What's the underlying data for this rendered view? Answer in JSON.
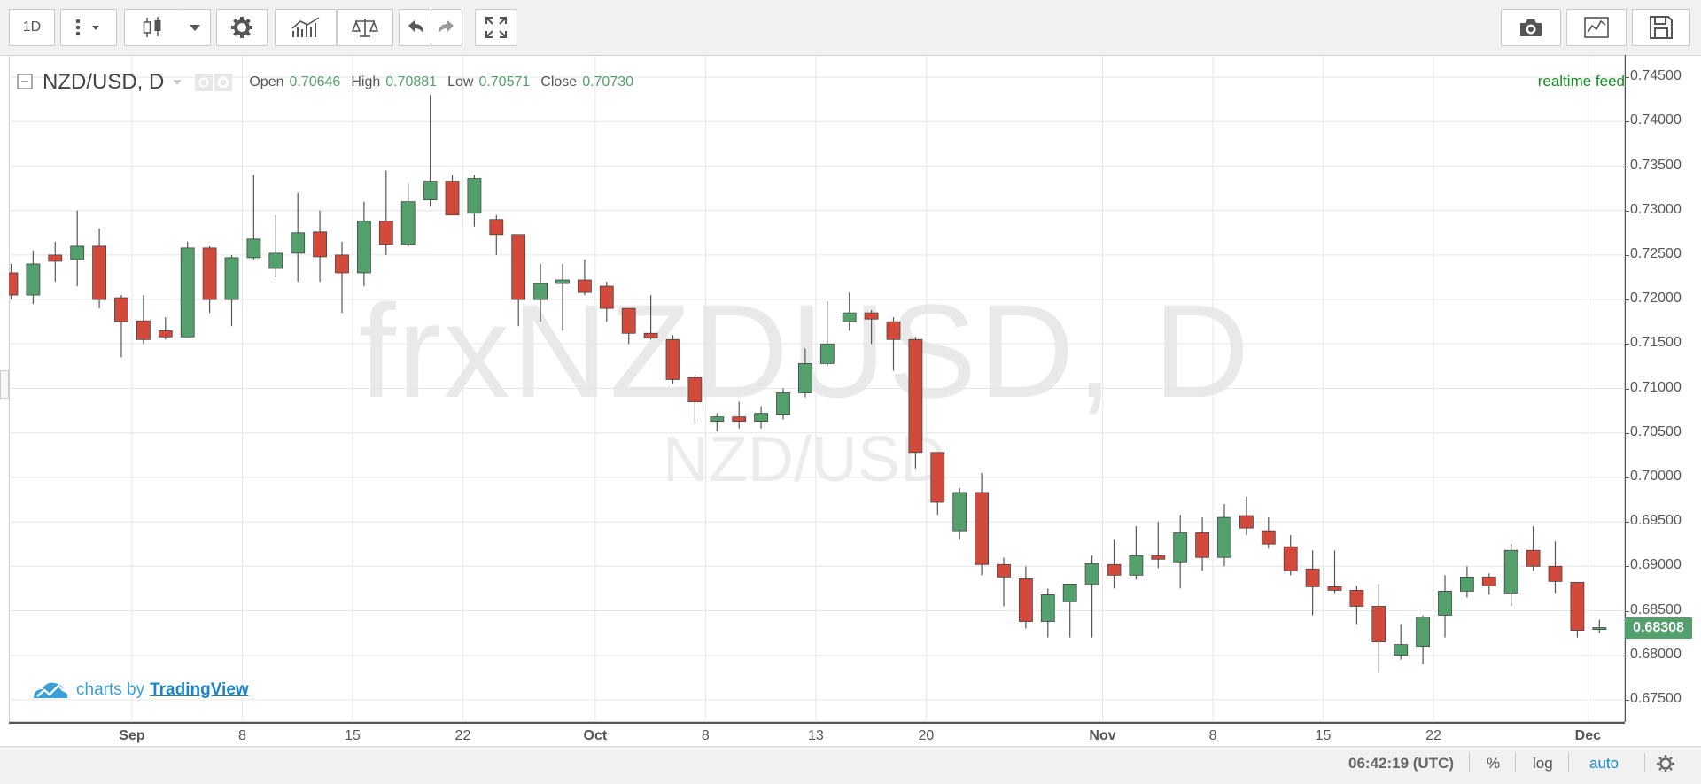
{
  "toolbar": {
    "interval": "1D",
    "icons": [
      "more-vert-icon",
      "chevron-down-icon",
      "candles-icon",
      "chevron-down-icon",
      "gear-icon",
      "indicators-icon",
      "compare-icon",
      "undo-icon",
      "redo-icon",
      "fullscreen-icon",
      "camera-icon",
      "chart-line-icon",
      "save-icon"
    ]
  },
  "header": {
    "symbol": "NZD/USD, D",
    "open_label": "Open",
    "open_value": "0.70646",
    "high_label": "High",
    "high_value": "0.70881",
    "low_label": "Low",
    "low_value": "0.70571",
    "close_label": "Close",
    "close_value": "0.70730",
    "realtime": "realtime feed"
  },
  "watermark": {
    "main": "frxNZDUSD, D",
    "sub": "NZD/USD"
  },
  "brand": {
    "prefix": "charts by",
    "name": "TradingView"
  },
  "status_bar": {
    "time": "06:42:19 (UTC)",
    "percent": "%",
    "log": "log",
    "auto": "auto"
  },
  "colors": {
    "up": "#53a06d",
    "down": "#d24a3b",
    "accent": "#1a86c6",
    "realtime": "#138d22"
  },
  "chart_data": {
    "type": "candlestick",
    "ylim": [
      0.6725,
      0.7475
    ],
    "y_ticks": [
      "0.74500",
      "0.74000",
      "0.73500",
      "0.73000",
      "0.72500",
      "0.72000",
      "0.71500",
      "0.71000",
      "0.70500",
      "0.70000",
      "0.69500",
      "0.69000",
      "0.68500",
      "0.68000",
      "0.67500"
    ],
    "last_price": "0.68308",
    "x_labels": [
      "Sep",
      "8",
      "15",
      "22",
      "Oct",
      "8",
      "13",
      "20",
      "Nov",
      "8",
      "15",
      "22",
      "Dec"
    ],
    "x_label_index": [
      5.5,
      10.5,
      15.5,
      20.5,
      26.5,
      31.5,
      36.5,
      41.5,
      49.5,
      54.5,
      59.5,
      64.5,
      71.5
    ],
    "candles": [
      {
        "o": 0.723,
        "h": 0.724,
        "l": 0.72,
        "c": 0.7205
      },
      {
        "o": 0.7205,
        "h": 0.7255,
        "l": 0.7195,
        "c": 0.724
      },
      {
        "o": 0.725,
        "h": 0.7265,
        "l": 0.722,
        "c": 0.7243
      },
      {
        "o": 0.7245,
        "h": 0.73,
        "l": 0.7215,
        "c": 0.726
      },
      {
        "o": 0.726,
        "h": 0.728,
        "l": 0.719,
        "c": 0.72
      },
      {
        "o": 0.7202,
        "h": 0.7205,
        "l": 0.7135,
        "c": 0.7175
      },
      {
        "o": 0.7176,
        "h": 0.7205,
        "l": 0.715,
        "c": 0.7155
      },
      {
        "o": 0.7165,
        "h": 0.718,
        "l": 0.7155,
        "c": 0.7158
      },
      {
        "o": 0.7158,
        "h": 0.7265,
        "l": 0.7158,
        "c": 0.7258
      },
      {
        "o": 0.7258,
        "h": 0.726,
        "l": 0.7185,
        "c": 0.72
      },
      {
        "o": 0.72,
        "h": 0.725,
        "l": 0.717,
        "c": 0.7247
      },
      {
        "o": 0.7247,
        "h": 0.734,
        "l": 0.7245,
        "c": 0.7268
      },
      {
        "o": 0.7235,
        "h": 0.7295,
        "l": 0.7225,
        "c": 0.7252
      },
      {
        "o": 0.7252,
        "h": 0.732,
        "l": 0.722,
        "c": 0.7275
      },
      {
        "o": 0.7276,
        "h": 0.73,
        "l": 0.722,
        "c": 0.7248
      },
      {
        "o": 0.725,
        "h": 0.7265,
        "l": 0.7185,
        "c": 0.723
      },
      {
        "o": 0.723,
        "h": 0.731,
        "l": 0.7215,
        "c": 0.7288
      },
      {
        "o": 0.7288,
        "h": 0.7345,
        "l": 0.725,
        "c": 0.7262
      },
      {
        "o": 0.7262,
        "h": 0.733,
        "l": 0.726,
        "c": 0.731
      },
      {
        "o": 0.7312,
        "h": 0.743,
        "l": 0.7305,
        "c": 0.7333
      },
      {
        "o": 0.7333,
        "h": 0.734,
        "l": 0.7295,
        "c": 0.7295
      },
      {
        "o": 0.7297,
        "h": 0.734,
        "l": 0.7282,
        "c": 0.7336
      },
      {
        "o": 0.729,
        "h": 0.7295,
        "l": 0.725,
        "c": 0.7273
      },
      {
        "o": 0.7273,
        "h": 0.7273,
        "l": 0.717,
        "c": 0.72
      },
      {
        "o": 0.72,
        "h": 0.724,
        "l": 0.7175,
        "c": 0.7218
      },
      {
        "o": 0.7218,
        "h": 0.724,
        "l": 0.7165,
        "c": 0.7222
      },
      {
        "o": 0.7222,
        "h": 0.7245,
        "l": 0.7205,
        "c": 0.7208
      },
      {
        "o": 0.7215,
        "h": 0.722,
        "l": 0.7175,
        "c": 0.719
      },
      {
        "o": 0.719,
        "h": 0.719,
        "l": 0.715,
        "c": 0.7162
      },
      {
        "o": 0.7162,
        "h": 0.7205,
        "l": 0.7155,
        "c": 0.7157
      },
      {
        "o": 0.7155,
        "h": 0.716,
        "l": 0.7105,
        "c": 0.711
      },
      {
        "o": 0.7112,
        "h": 0.7115,
        "l": 0.706,
        "c": 0.7085
      },
      {
        "o": 0.7063,
        "h": 0.7072,
        "l": 0.7052,
        "c": 0.7068
      },
      {
        "o": 0.7068,
        "h": 0.7085,
        "l": 0.7055,
        "c": 0.7063
      },
      {
        "o": 0.7063,
        "h": 0.708,
        "l": 0.7055,
        "c": 0.7072
      },
      {
        "o": 0.7071,
        "h": 0.71,
        "l": 0.7065,
        "c": 0.7095
      },
      {
        "o": 0.7095,
        "h": 0.7145,
        "l": 0.709,
        "c": 0.7128
      },
      {
        "o": 0.7128,
        "h": 0.7198,
        "l": 0.7125,
        "c": 0.715
      },
      {
        "o": 0.7175,
        "h": 0.7208,
        "l": 0.7165,
        "c": 0.7185
      },
      {
        "o": 0.7185,
        "h": 0.7188,
        "l": 0.715,
        "c": 0.7178
      },
      {
        "o": 0.7175,
        "h": 0.718,
        "l": 0.712,
        "c": 0.7155
      },
      {
        "o": 0.7155,
        "h": 0.7158,
        "l": 0.701,
        "c": 0.7028
      },
      {
        "o": 0.7028,
        "h": 0.7028,
        "l": 0.6958,
        "c": 0.6972
      },
      {
        "o": 0.694,
        "h": 0.6988,
        "l": 0.693,
        "c": 0.6983
      },
      {
        "o": 0.6983,
        "h": 0.7005,
        "l": 0.689,
        "c": 0.6902
      },
      {
        "o": 0.6902,
        "h": 0.691,
        "l": 0.6855,
        "c": 0.6888
      },
      {
        "o": 0.6886,
        "h": 0.69,
        "l": 0.683,
        "c": 0.6838
      },
      {
        "o": 0.6838,
        "h": 0.6875,
        "l": 0.682,
        "c": 0.6868
      },
      {
        "o": 0.686,
        "h": 0.688,
        "l": 0.682,
        "c": 0.688
      },
      {
        "o": 0.688,
        "h": 0.6912,
        "l": 0.682,
        "c": 0.6903
      },
      {
        "o": 0.6902,
        "h": 0.693,
        "l": 0.6875,
        "c": 0.689
      },
      {
        "o": 0.689,
        "h": 0.6945,
        "l": 0.6885,
        "c": 0.6912
      },
      {
        "o": 0.6912,
        "h": 0.695,
        "l": 0.6898,
        "c": 0.6908
      },
      {
        "o": 0.6905,
        "h": 0.6958,
        "l": 0.6875,
        "c": 0.6938
      },
      {
        "o": 0.6938,
        "h": 0.6955,
        "l": 0.6895,
        "c": 0.691
      },
      {
        "o": 0.691,
        "h": 0.697,
        "l": 0.69,
        "c": 0.6955
      },
      {
        "o": 0.6957,
        "h": 0.6978,
        "l": 0.6935,
        "c": 0.6943
      },
      {
        "o": 0.694,
        "h": 0.6955,
        "l": 0.692,
        "c": 0.6925
      },
      {
        "o": 0.6922,
        "h": 0.6935,
        "l": 0.689,
        "c": 0.6895
      },
      {
        "o": 0.6897,
        "h": 0.6918,
        "l": 0.6845,
        "c": 0.6877
      },
      {
        "o": 0.6877,
        "h": 0.6918,
        "l": 0.687,
        "c": 0.6873
      },
      {
        "o": 0.6873,
        "h": 0.6878,
        "l": 0.6835,
        "c": 0.6855
      },
      {
        "o": 0.6855,
        "h": 0.688,
        "l": 0.678,
        "c": 0.6815
      },
      {
        "o": 0.68,
        "h": 0.6835,
        "l": 0.6795,
        "c": 0.6812
      },
      {
        "o": 0.681,
        "h": 0.6845,
        "l": 0.679,
        "c": 0.6843
      },
      {
        "o": 0.6845,
        "h": 0.689,
        "l": 0.682,
        "c": 0.6872
      },
      {
        "o": 0.6872,
        "h": 0.69,
        "l": 0.6865,
        "c": 0.6888
      },
      {
        "o": 0.6888,
        "h": 0.6892,
        "l": 0.6868,
        "c": 0.6878
      },
      {
        "o": 0.687,
        "h": 0.6925,
        "l": 0.6855,
        "c": 0.6918
      },
      {
        "o": 0.6918,
        "h": 0.6945,
        "l": 0.6895,
        "c": 0.69
      },
      {
        "o": 0.69,
        "h": 0.6928,
        "l": 0.687,
        "c": 0.6883
      },
      {
        "o": 0.6882,
        "h": 0.6882,
        "l": 0.682,
        "c": 0.6828
      },
      {
        "o": 0.6829,
        "h": 0.684,
        "l": 0.6825,
        "c": 0.6831
      }
    ]
  }
}
